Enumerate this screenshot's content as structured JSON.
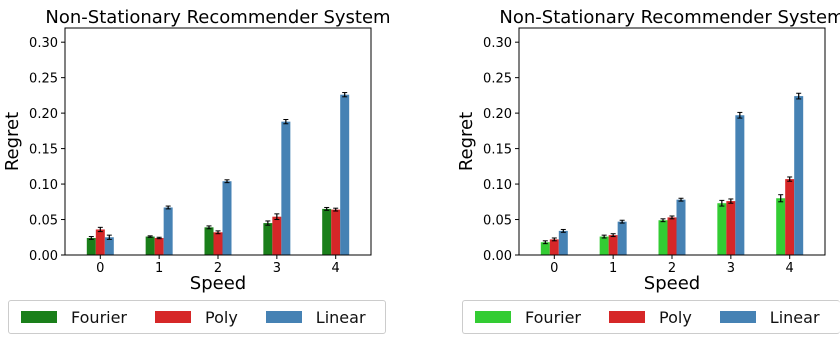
{
  "colors": {
    "fourier_left": "#1a7f1a",
    "fourier_right": "#33cc33",
    "poly": "#d62728",
    "linear": "#4682b4",
    "axis": "#000000",
    "errorbar": "#000000"
  },
  "chart_data": [
    {
      "type": "bar",
      "title": "Non-Stationary Recommender System",
      "xlabel": "Speed",
      "ylabel": "Regret",
      "ylim": [
        0,
        0.32
      ],
      "yticks": [
        "0.00",
        "0.05",
        "0.10",
        "0.15",
        "0.20",
        "0.25",
        "0.30"
      ],
      "categories": [
        "0",
        "1",
        "2",
        "3",
        "4"
      ],
      "series": [
        {
          "name": "Fourier",
          "color_key": "fourier_left",
          "values": [
            0.024,
            0.026,
            0.039,
            0.045,
            0.065
          ],
          "errors": [
            0.002,
            0.001,
            0.002,
            0.003,
            0.002
          ]
        },
        {
          "name": "Poly",
          "color_key": "poly",
          "values": [
            0.036,
            0.024,
            0.032,
            0.054,
            0.064
          ],
          "errors": [
            0.003,
            0.001,
            0.002,
            0.004,
            0.002
          ]
        },
        {
          "name": "Linear",
          "color_key": "linear",
          "values": [
            0.025,
            0.067,
            0.104,
            0.188,
            0.226
          ],
          "errors": [
            0.003,
            0.002,
            0.002,
            0.003,
            0.003
          ]
        }
      ],
      "legend": [
        "Fourier",
        "Poly",
        "Linear"
      ],
      "legend_position": "bottom"
    },
    {
      "type": "bar",
      "title": "Non-Stationary Recommender System",
      "xlabel": "Speed",
      "ylabel": "Regret",
      "ylim": [
        0,
        0.32
      ],
      "yticks": [
        "0.00",
        "0.05",
        "0.10",
        "0.15",
        "0.20",
        "0.25",
        "0.30"
      ],
      "categories": [
        "0",
        "1",
        "2",
        "3",
        "4"
      ],
      "series": [
        {
          "name": "Fourier",
          "color_key": "fourier_right",
          "values": [
            0.018,
            0.026,
            0.049,
            0.073,
            0.08
          ],
          "errors": [
            0.002,
            0.002,
            0.002,
            0.004,
            0.005
          ]
        },
        {
          "name": "Poly",
          "color_key": "poly",
          "values": [
            0.022,
            0.028,
            0.053,
            0.076,
            0.107
          ],
          "errors": [
            0.002,
            0.002,
            0.002,
            0.003,
            0.003
          ]
        },
        {
          "name": "Linear",
          "color_key": "linear",
          "values": [
            0.034,
            0.047,
            0.078,
            0.197,
            0.224
          ],
          "errors": [
            0.002,
            0.002,
            0.002,
            0.004,
            0.004
          ]
        }
      ],
      "legend": [
        "Fourier",
        "Poly",
        "Linear"
      ],
      "legend_position": "bottom"
    }
  ]
}
